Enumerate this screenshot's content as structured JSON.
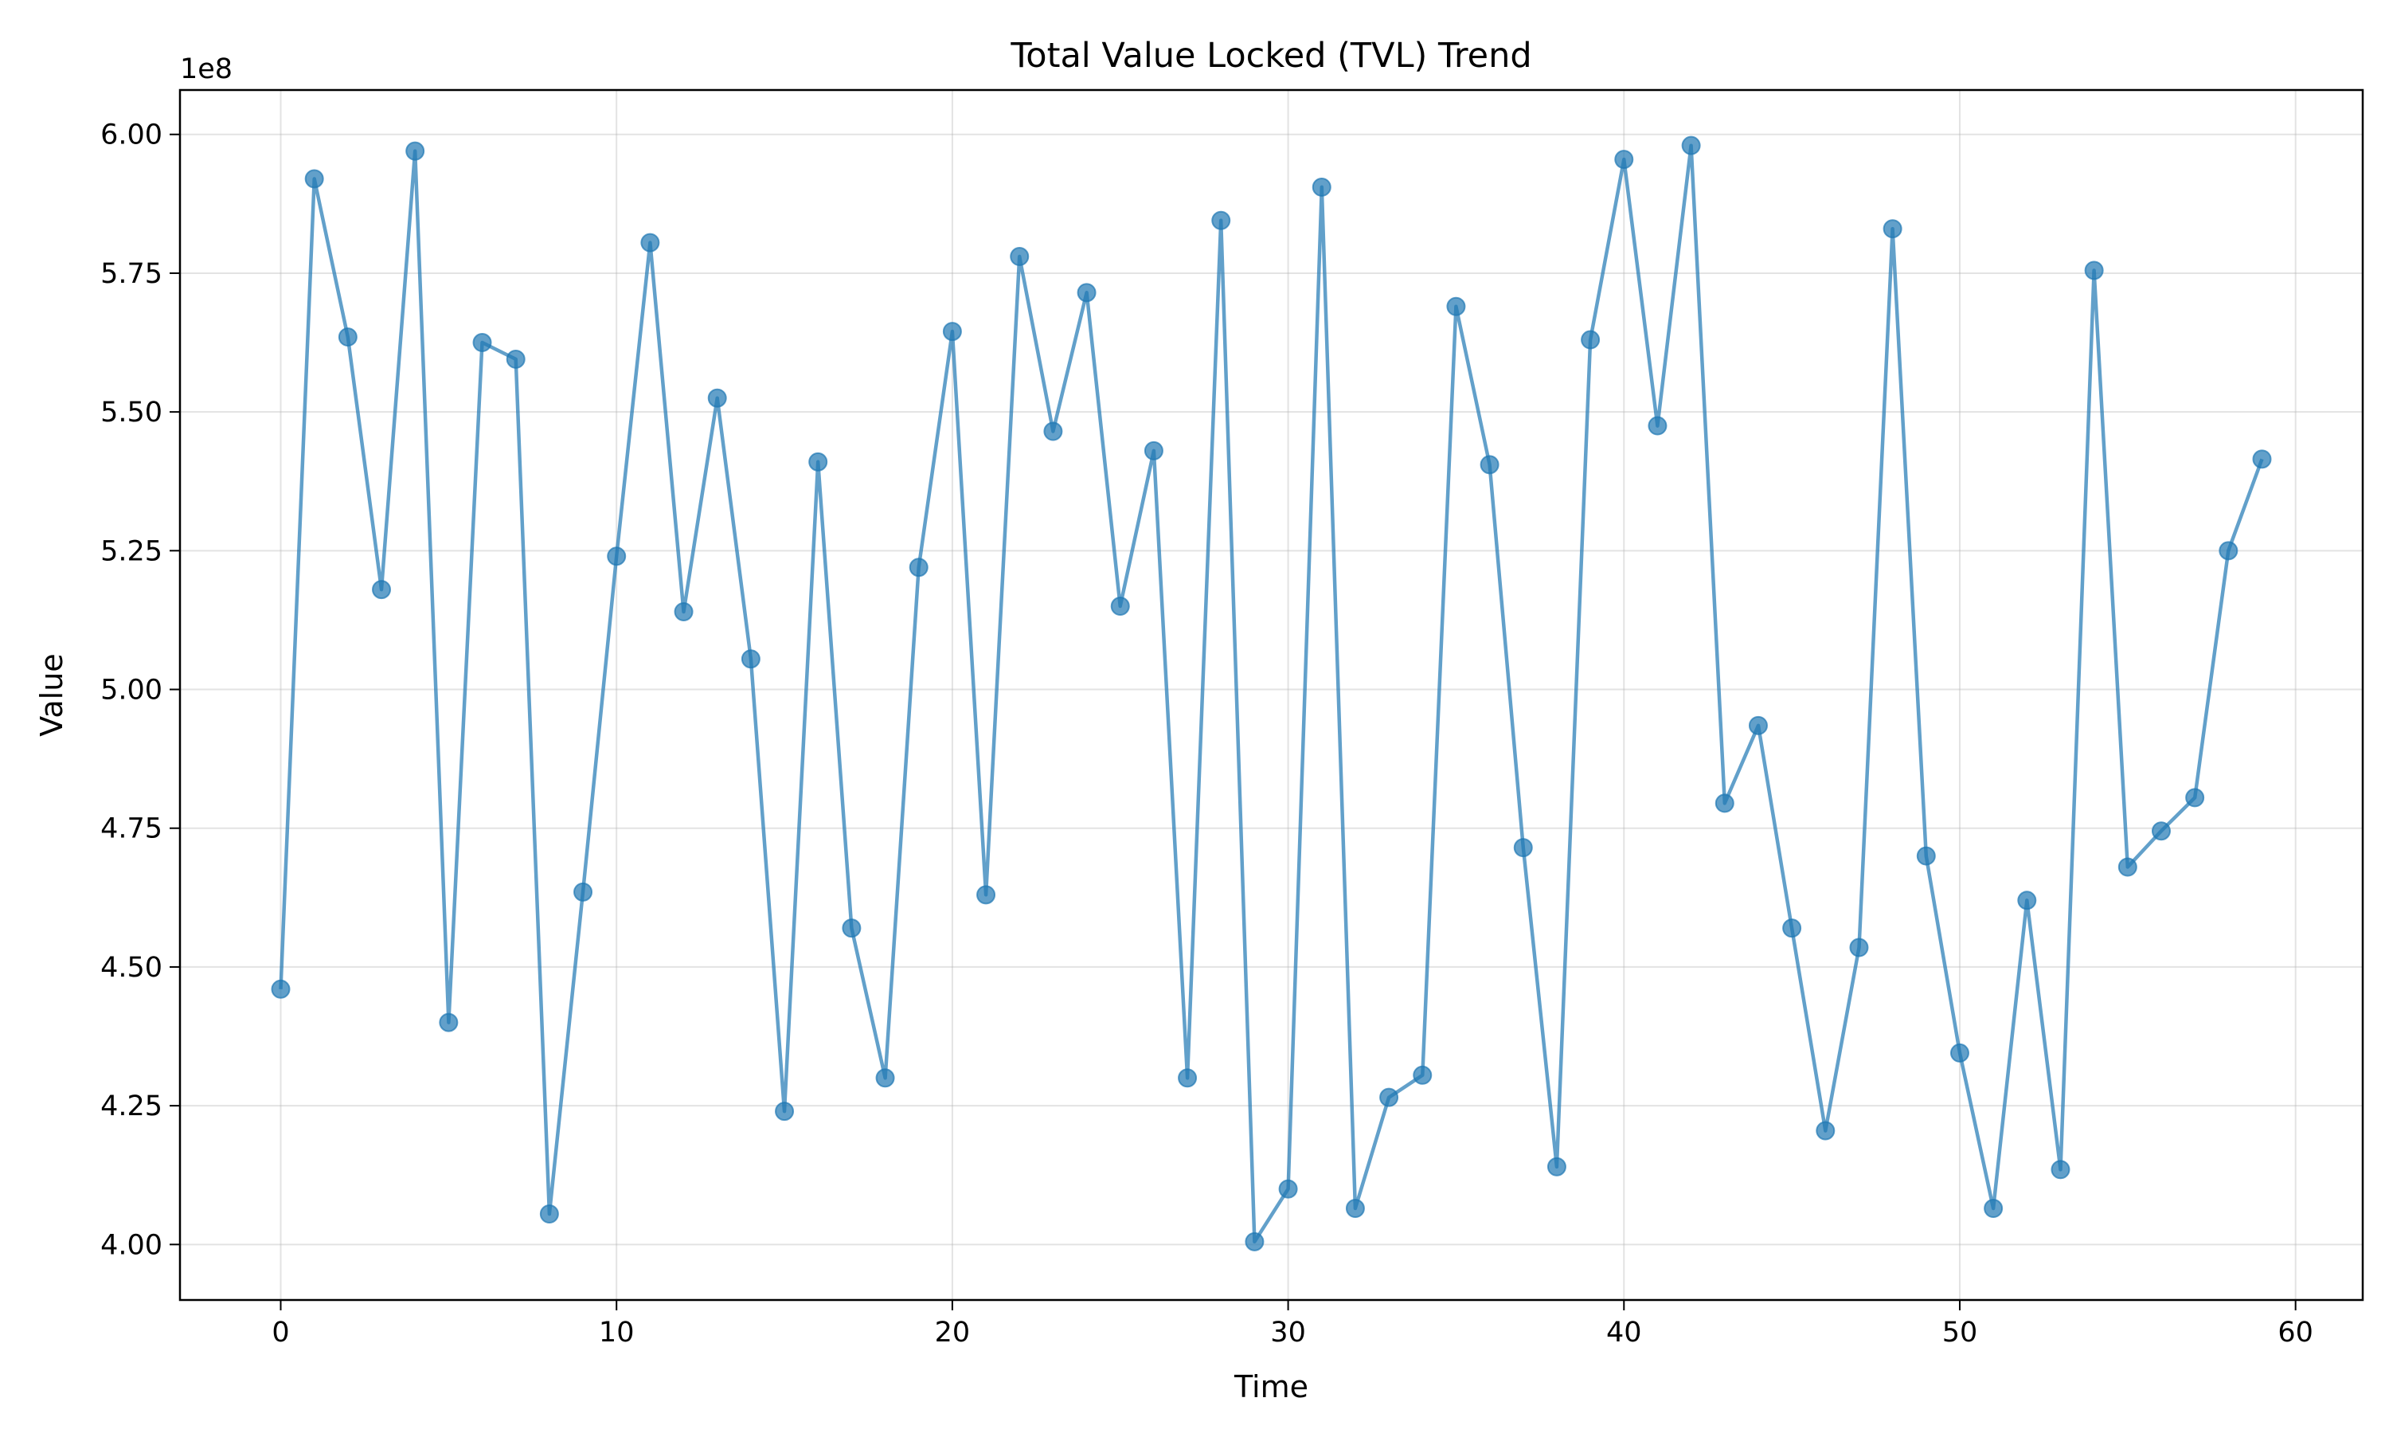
{
  "chart_data": {
    "type": "line",
    "title": "Total Value Locked (TVL) Trend",
    "xlabel": "Time",
    "ylabel": "Value",
    "y_offset_label": "1e8",
    "y_scale_factor": 100000000,
    "xlim": [
      -3,
      62
    ],
    "ylim": [
      390000000,
      608000000
    ],
    "x_ticks": [
      0,
      10,
      20,
      30,
      40,
      50,
      60
    ],
    "y_ticks": [
      4.0,
      4.25,
      4.5,
      4.75,
      5.0,
      5.25,
      5.5,
      5.75,
      6.0
    ],
    "y_tick_labels": [
      "4.00",
      "4.25",
      "4.50",
      "4.75",
      "5.00",
      "5.25",
      "5.50",
      "5.75",
      "6.00"
    ],
    "grid": true,
    "colors": {
      "series": "#1f77b4"
    },
    "series": [
      {
        "marker": "circle",
        "x": [
          0,
          1,
          2,
          3,
          4,
          5,
          6,
          7,
          8,
          9,
          10,
          11,
          12,
          13,
          14,
          15,
          16,
          17,
          18,
          19,
          20,
          21,
          22,
          23,
          24,
          25,
          26,
          27,
          28,
          29,
          30,
          31,
          32,
          33,
          34,
          35,
          36,
          37,
          38,
          39,
          40,
          41,
          42,
          43,
          44,
          45,
          46,
          47,
          48,
          49,
          50,
          51,
          52,
          53,
          54,
          55,
          56,
          57,
          58,
          59
        ],
        "y": [
          446000000,
          592000000,
          563500000,
          518000000,
          597000000,
          440000000,
          562500000,
          559500000,
          405500000,
          463500000,
          524000000,
          580500000,
          514000000,
          552500000,
          505500000,
          424000000,
          541000000,
          457000000,
          430000000,
          522000000,
          564500000,
          463000000,
          578000000,
          546500000,
          571500000,
          515000000,
          543000000,
          430000000,
          584500000,
          400500000,
          410000000,
          590500000,
          406500000,
          426500000,
          430500000,
          569000000,
          540500000,
          471500000,
          414000000,
          563000000,
          595500000,
          547500000,
          598000000,
          479500000,
          493500000,
          457000000,
          420500000,
          453500000,
          583000000,
          470000000,
          434500000,
          406500000,
          462000000,
          413500000,
          575500000,
          468000000,
          474500000,
          480500000,
          525000000,
          541500000
        ]
      }
    ]
  }
}
